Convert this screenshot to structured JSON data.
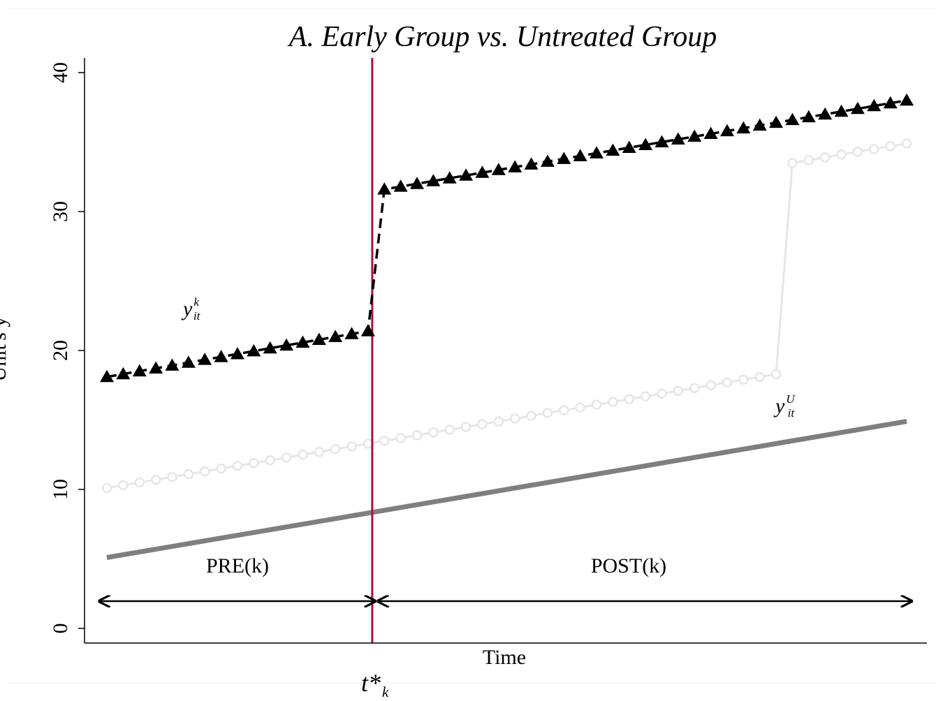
{
  "chart_data": {
    "type": "line",
    "title": "A. Early Group vs. Untreated Group",
    "xlabel": "Time",
    "ylabel": "Unit's y",
    "ylim": [
      0,
      40
    ],
    "yticks": [
      0,
      10,
      20,
      30,
      40
    ],
    "grid": false,
    "x": {
      "start": 1,
      "end": 50,
      "treatment_period": 17,
      "untreated_jump_period": 42
    },
    "event_label": {
      "base": "t*",
      "sub": "k"
    },
    "regions": [
      {
        "label": "PRE(k)",
        "from": 1,
        "to": 17
      },
      {
        "label": "POST(k)",
        "from": 17,
        "to": 50
      }
    ],
    "series": [
      {
        "label": {
          "base": "y",
          "sup": "k",
          "sub": "it"
        },
        "style": "dashed-triangle",
        "color": "#000000",
        "pre": {
          "start": 18.1,
          "end": 21.4
        },
        "post": {
          "start": 31.6,
          "end": 38.0
        }
      },
      {
        "label": {
          "base": "y",
          "sup": "U",
          "sub": "it"
        },
        "style": "circle-line",
        "color": "#e6e6e6",
        "pre": {
          "start": 10.1,
          "end": 18.3
        },
        "post": {
          "start": 33.5,
          "end": 34.9
        }
      },
      {
        "style": "thick-line",
        "color": "#7f7f7f",
        "pre": {
          "start": 5.1,
          "end": 14.9
        }
      }
    ],
    "colors": {
      "treatment_line": "#b0103a",
      "axis": "#000000"
    }
  }
}
